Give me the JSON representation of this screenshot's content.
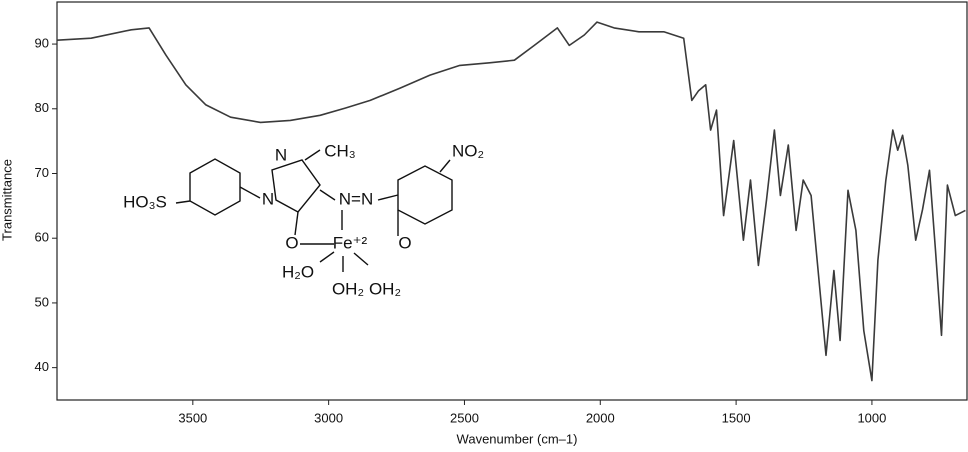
{
  "chart_data": {
    "type": "line",
    "xlabel": "Wavenumber (cm–1)",
    "ylabel": "Transmittance",
    "x": [
      4000,
      3874,
      3727,
      3661,
      3599,
      3526,
      3452,
      3361,
      3251,
      3141,
      3031,
      2939,
      2847,
      2737,
      2627,
      2517,
      2408,
      2316,
      2243,
      2158,
      2114,
      2059,
      2012,
      1949,
      1858,
      1766,
      1693,
      1663,
      1638,
      1612,
      1594,
      1572,
      1546,
      1509,
      1473,
      1447,
      1418,
      1388,
      1359,
      1337,
      1308,
      1279,
      1253,
      1224,
      1198,
      1169,
      1140,
      1117,
      1088,
      1059,
      1030,
      1000,
      978,
      949,
      923,
      905,
      887,
      868,
      839,
      814,
      788,
      766,
      744,
      722,
      693,
      656
    ],
    "values": [
      90.6,
      90.9,
      92.2,
      92.5,
      88.3,
      83.7,
      80.6,
      78.7,
      77.9,
      78.2,
      79.0,
      80.1,
      81.3,
      83.2,
      85.2,
      86.7,
      87.1,
      87.5,
      89.8,
      92.5,
      89.8,
      91.4,
      93.4,
      92.5,
      91.9,
      91.9,
      90.9,
      81.3,
      82.8,
      83.7,
      76.7,
      79.8,
      63.5,
      75.1,
      59.7,
      69.0,
      55.8,
      65.9,
      76.7,
      66.6,
      74.4,
      61.2,
      69.0,
      66.6,
      55.0,
      41.9,
      55.0,
      44.2,
      67.4,
      61.2,
      45.7,
      38.0,
      56.6,
      68.9,
      76.7,
      73.6,
      75.9,
      71.3,
      59.7,
      64.4,
      70.5,
      58.1,
      45.0,
      68.2,
      63.5,
      64.3
    ],
    "color": "#3a3a3a",
    "xlim": [
      4000,
      650
    ],
    "xticks": [
      3500,
      3000,
      2500,
      2000,
      1500,
      1000
    ],
    "ylim": [
      35,
      96.5
    ],
    "yticks": [
      90,
      80,
      70,
      60,
      50,
      40
    ],
    "grid": false,
    "annotations": [
      "HO₃S",
      "N",
      "N",
      "CH₃",
      "N=N",
      "NO₂",
      "O",
      "Fe⁺²",
      "O",
      "H₂O",
      "OH₂",
      "OH₂"
    ]
  }
}
